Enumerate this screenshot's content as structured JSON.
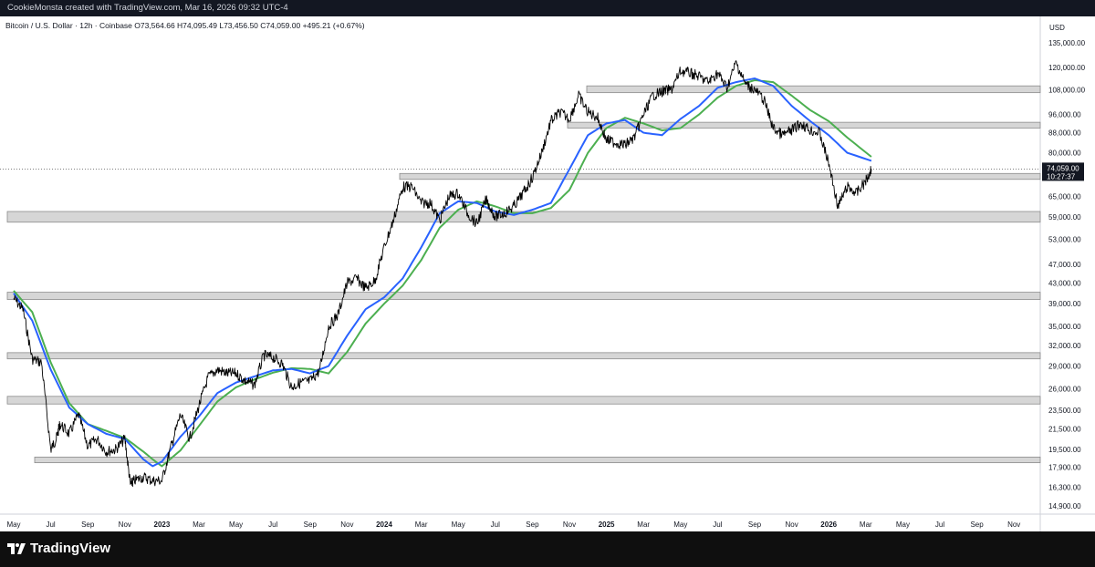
{
  "header": {
    "title": "CookieMonsta created with TradingView.com, Mar 16, 2026 09:32 UTC-4"
  },
  "ohlc_line": "Bitcoin / U.S. Dollar · 12h · Coinbase  O73,564.66  H74,095.49  L73,456.50  C74,059.00  +495.21 (+0.67%)",
  "currency": "USD",
  "last_price": {
    "value": "74,059.00",
    "countdown": "10:27:37"
  },
  "footer": {
    "brand": "TradingView"
  },
  "colors": {
    "price": "#000000",
    "ma_fast": "#2962ff",
    "ma_slow": "#4caf50",
    "zone_fill": "#d6d6d6",
    "zone_stroke": "#8c8c8c"
  },
  "chart_data": {
    "type": "line",
    "title": "Bitcoin / U.S. Dollar · 12h · Coinbase",
    "xlabel": "",
    "ylabel": "USD",
    "log_scale": true,
    "grid": false,
    "y_tick_labels": [
      "135,000.00",
      "120,000.00",
      "108,000.00",
      "96,000.00",
      "88,000.00",
      "80,000.00",
      "65,000.00",
      "59,000.00",
      "53,000.00",
      "47,000.00",
      "43,000.00",
      "39,000.00",
      "35,000.00",
      "32,000.00",
      "29,000.00",
      "26,000.00",
      "23,500.00",
      "21,500.00",
      "19,500.00",
      "17,900.00",
      "16,300.00",
      "14,900.00"
    ],
    "y_tick_values": [
      135000,
      120000,
      108000,
      96000,
      88000,
      80000,
      65000,
      59000,
      53000,
      47000,
      43000,
      39000,
      35000,
      32000,
      29000,
      26000,
      23500,
      21500,
      19500,
      17900,
      16300,
      14900
    ],
    "x_tick_labels": [
      "May",
      "Jul",
      "Sep",
      "Nov",
      "2023",
      "Mar",
      "May",
      "Jul",
      "Sep",
      "Nov",
      "2024",
      "Mar",
      "May",
      "Jul",
      "Sep",
      "Nov",
      "2025",
      "Mar",
      "May",
      "Jul",
      "Sep",
      "Nov",
      "2026",
      "Mar",
      "May",
      "Jul",
      "Sep",
      "Nov"
    ],
    "x_tick_months": [
      0,
      2,
      4,
      6,
      8,
      10,
      12,
      14,
      16,
      18,
      20,
      22,
      24,
      26,
      28,
      30,
      32,
      34,
      36,
      38,
      40,
      42,
      44,
      46,
      48,
      50,
      52,
      54
    ],
    "x_tick_bold": [
      false,
      false,
      false,
      false,
      true,
      false,
      false,
      false,
      false,
      false,
      true,
      false,
      false,
      false,
      false,
      false,
      true,
      false,
      false,
      false,
      false,
      false,
      true,
      false,
      false,
      false,
      false,
      false
    ],
    "x_origin": "2022-05",
    "support_resistance_zones": [
      {
        "low": 106500,
        "high": 110000
      },
      {
        "low": 90000,
        "high": 92500
      },
      {
        "low": 70500,
        "high": 72500
      },
      {
        "low": 57500,
        "high": 60500
      },
      {
        "low": 39800,
        "high": 41200
      },
      {
        "low": 30000,
        "high": 30900
      },
      {
        "low": 24200,
        "high": 25100
      },
      {
        "low": 18300,
        "high": 18800
      }
    ],
    "series": [
      {
        "name": "BTCUSD",
        "months": [
          0,
          0.5,
          1,
          1.5,
          2,
          2.3,
          2.5,
          3,
          3.5,
          4,
          4.5,
          5,
          5.5,
          6,
          6.3,
          6.5,
          7,
          7.5,
          8,
          8.5,
          9,
          9.5,
          10,
          10.5,
          11,
          11.5,
          12,
          12.5,
          13,
          13.5,
          14,
          14.5,
          15,
          15.5,
          16,
          16.5,
          17,
          17.5,
          18,
          18.5,
          19,
          19.5,
          20,
          20.5,
          21,
          21.5,
          22,
          22.5,
          23,
          23.5,
          24,
          24.5,
          25,
          25.5,
          26,
          26.5,
          27,
          27.5,
          28,
          28.5,
          29,
          29.5,
          30,
          30.5,
          31,
          31.5,
          32,
          32.5,
          33,
          33.5,
          34,
          34.5,
          35,
          35.5,
          36,
          36.5,
          37,
          37.5,
          38,
          38.5,
          39,
          39.5,
          40,
          40.5,
          41,
          41.5,
          42,
          42.5,
          43,
          43.5,
          44,
          44.5,
          45,
          45.5,
          46,
          46.3
        ],
        "values": [
          40000,
          38000,
          30000,
          29500,
          19500,
          20500,
          22000,
          21000,
          23000,
          19800,
          20500,
          19300,
          19500,
          20500,
          16500,
          16800,
          17100,
          16800,
          16800,
          19800,
          23000,
          20500,
          24000,
          27500,
          28500,
          28000,
          28000,
          27000,
          26500,
          30500,
          30200,
          29300,
          26200,
          26800,
          27000,
          28300,
          35000,
          37000,
          43000,
          44000,
          42000,
          43500,
          51000,
          58000,
          68000,
          68000,
          63000,
          63000,
          58000,
          65000,
          66000,
          60000,
          57000,
          64000,
          59000,
          60000,
          62000,
          66000,
          71000,
          80000,
          93000,
          97000,
          94000,
          105000,
          97000,
          95000,
          85000,
          84000,
          83000,
          86000,
          96000,
          105000,
          107000,
          108000,
          118000,
          117000,
          115000,
          112000,
          117000,
          109000,
          123000,
          111000,
          108000,
          103000,
          90000,
          87000,
          89000,
          92000,
          89000,
          88000,
          76000,
          62000,
          68000,
          66000,
          70000,
          74059
        ]
      },
      {
        "name": "",
        "months": [
          0,
          1,
          2,
          3,
          4,
          5,
          6,
          7,
          7.5,
          8,
          9,
          10,
          11,
          12,
          13,
          14,
          15,
          16,
          17,
          18,
          19,
          20,
          21,
          22,
          23,
          24,
          25,
          26,
          27,
          28,
          29,
          30,
          31,
          32,
          33,
          34,
          35,
          36,
          37,
          38,
          39,
          40,
          41,
          42,
          43,
          44,
          45,
          46.3
        ],
        "values": [
          41000,
          36000,
          28500,
          23800,
          22000,
          21000,
          20500,
          18600,
          18000,
          18400,
          20700,
          22800,
          25500,
          26800,
          27600,
          28400,
          28600,
          28000,
          29000,
          33500,
          38000,
          40200,
          44000,
          51000,
          60000,
          63500,
          63000,
          60500,
          59500,
          61000,
          63000,
          74000,
          87000,
          92000,
          93500,
          88000,
          87000,
          94000,
          100000,
          109000,
          112000,
          114000,
          110000,
          100000,
          93000,
          87000,
          80000,
          77000
        ]
      },
      {
        "name": "",
        "months": [
          0,
          1,
          2,
          3,
          4,
          5,
          6,
          7,
          7.5,
          8,
          9,
          10,
          11,
          12,
          13,
          14,
          15,
          16,
          17,
          18,
          19,
          20,
          21,
          22,
          23,
          24,
          25,
          26,
          27,
          28,
          29,
          30,
          31,
          32,
          33,
          34,
          35,
          36,
          37,
          38,
          39,
          40,
          41,
          42,
          43,
          44,
          45,
          46.3
        ],
        "values": [
          41500,
          37500,
          29500,
          24300,
          22000,
          21300,
          20600,
          19300,
          18600,
          18000,
          19400,
          21800,
          24500,
          26200,
          27200,
          28100,
          28700,
          28600,
          28000,
          31000,
          35500,
          39000,
          42500,
          48000,
          56000,
          61000,
          63500,
          62000,
          60000,
          60000,
          61500,
          67000,
          80000,
          90000,
          94500,
          92000,
          89000,
          90000,
          96000,
          104000,
          110000,
          113000,
          112000,
          105000,
          98000,
          93000,
          86000,
          78500
        ]
      }
    ]
  }
}
